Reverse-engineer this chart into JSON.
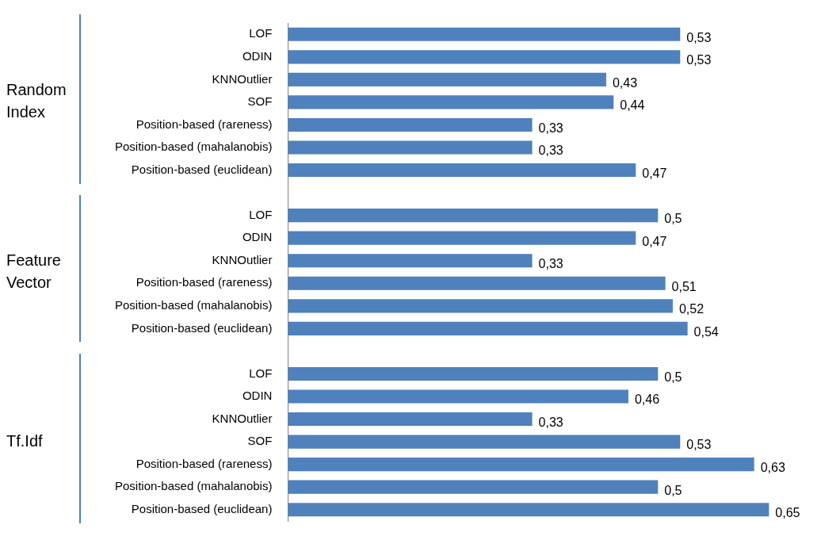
{
  "chart_data": {
    "type": "bar",
    "orientation": "horizontal",
    "categories": [
      "LOF",
      "ODIN",
      "KNNOutlier",
      "SOF",
      "Position-based (rareness)",
      "Position-based (mahalanobis)",
      "Position-based (euclidean)",
      null,
      "LOF",
      "ODIN",
      "KNNOutlier",
      "Position-based (rareness)",
      "Position-based (mahalanobis)",
      "Position-based (euclidean)",
      null,
      "LOF",
      "ODIN",
      "KNNOutlier",
      "SOF",
      "Position-based (rareness)",
      "Position-based (mahalanobis)",
      "Position-based (euclidean)"
    ],
    "values": [
      0.53,
      0.53,
      0.43,
      0.44,
      0.33,
      0.33,
      0.47,
      null,
      0.5,
      0.47,
      0.33,
      0.51,
      0.52,
      0.54,
      null,
      0.5,
      0.46,
      0.33,
      0.53,
      0.63,
      0.5,
      0.65
    ],
    "value_labels": [
      "0,53",
      "0,53",
      "0,43",
      "0,44",
      "0,33",
      "0,33",
      "0,47",
      null,
      "0,5",
      "0,47",
      "0,33",
      "0,51",
      "0,52",
      "0,54",
      null,
      "0,5",
      "0,46",
      "0,33",
      "0,53",
      "0,63",
      "0,5",
      "0,65"
    ],
    "color": "#4f81bd",
    "annotations": [
      "Random Index",
      "Feature Vector",
      "Tf.Idf"
    ],
    "grid": false,
    "legend": false
  }
}
